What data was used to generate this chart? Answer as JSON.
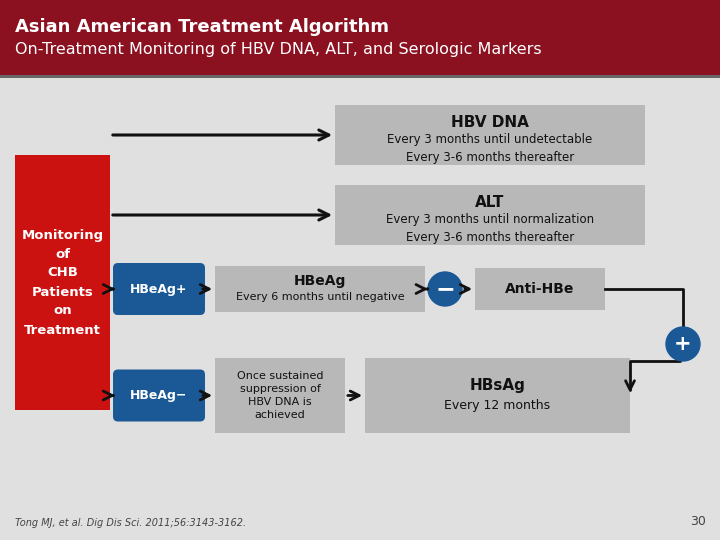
{
  "title_line1": "Asian American Treatment Algorithm",
  "title_line2": "On-Treatment Monitoring of HBV DNA, ALT, and Serologic Markers",
  "header_bg": "#8b1020",
  "header_separator": "#666666",
  "content_bg": "#e0e0e0",
  "red_box_color": "#cc1111",
  "blue_box_color": "#1a5896",
  "gray_box_color": "#b8b8b8",
  "circle_color": "#1a5896",
  "arrow_color": "#111111",
  "white": "#ffffff",
  "black": "#111111",
  "footer_color": "#444444",
  "footer_text": "Tong MJ, et al. Dig Dis Sci. 2011;56:3143-3162.",
  "page_number": "30",
  "left_box_text": "Monitoring\nof\nCHB\nPatients\non\nTreatment",
  "hbv_dna_title": "HBV DNA",
  "hbv_dna_sub": "Every 3 months until undetectable\nEvery 3-6 months thereafter",
  "alt_title": "ALT",
  "alt_sub": "Every 3 months until normalization\nEvery 3-6 months thereafter",
  "hbeag_plus_label": "HBeAg+",
  "hbeag_box_title": "HBeAg",
  "hbeag_box_sub": "Every 6 months until negative",
  "minus_label": "−",
  "anti_hbe_label": "Anti-HBe",
  "plus_label": "+",
  "hbeag_minus_label": "HBeAg−",
  "once_sustained_text": "Once sustained\nsuppression of\nHBV DNA is\nachieved",
  "hbsag_title": "HBsAg",
  "hbsag_sub": "Every 12 months",
  "fig_w": 7.2,
  "fig_h": 5.4,
  "dpi": 100
}
